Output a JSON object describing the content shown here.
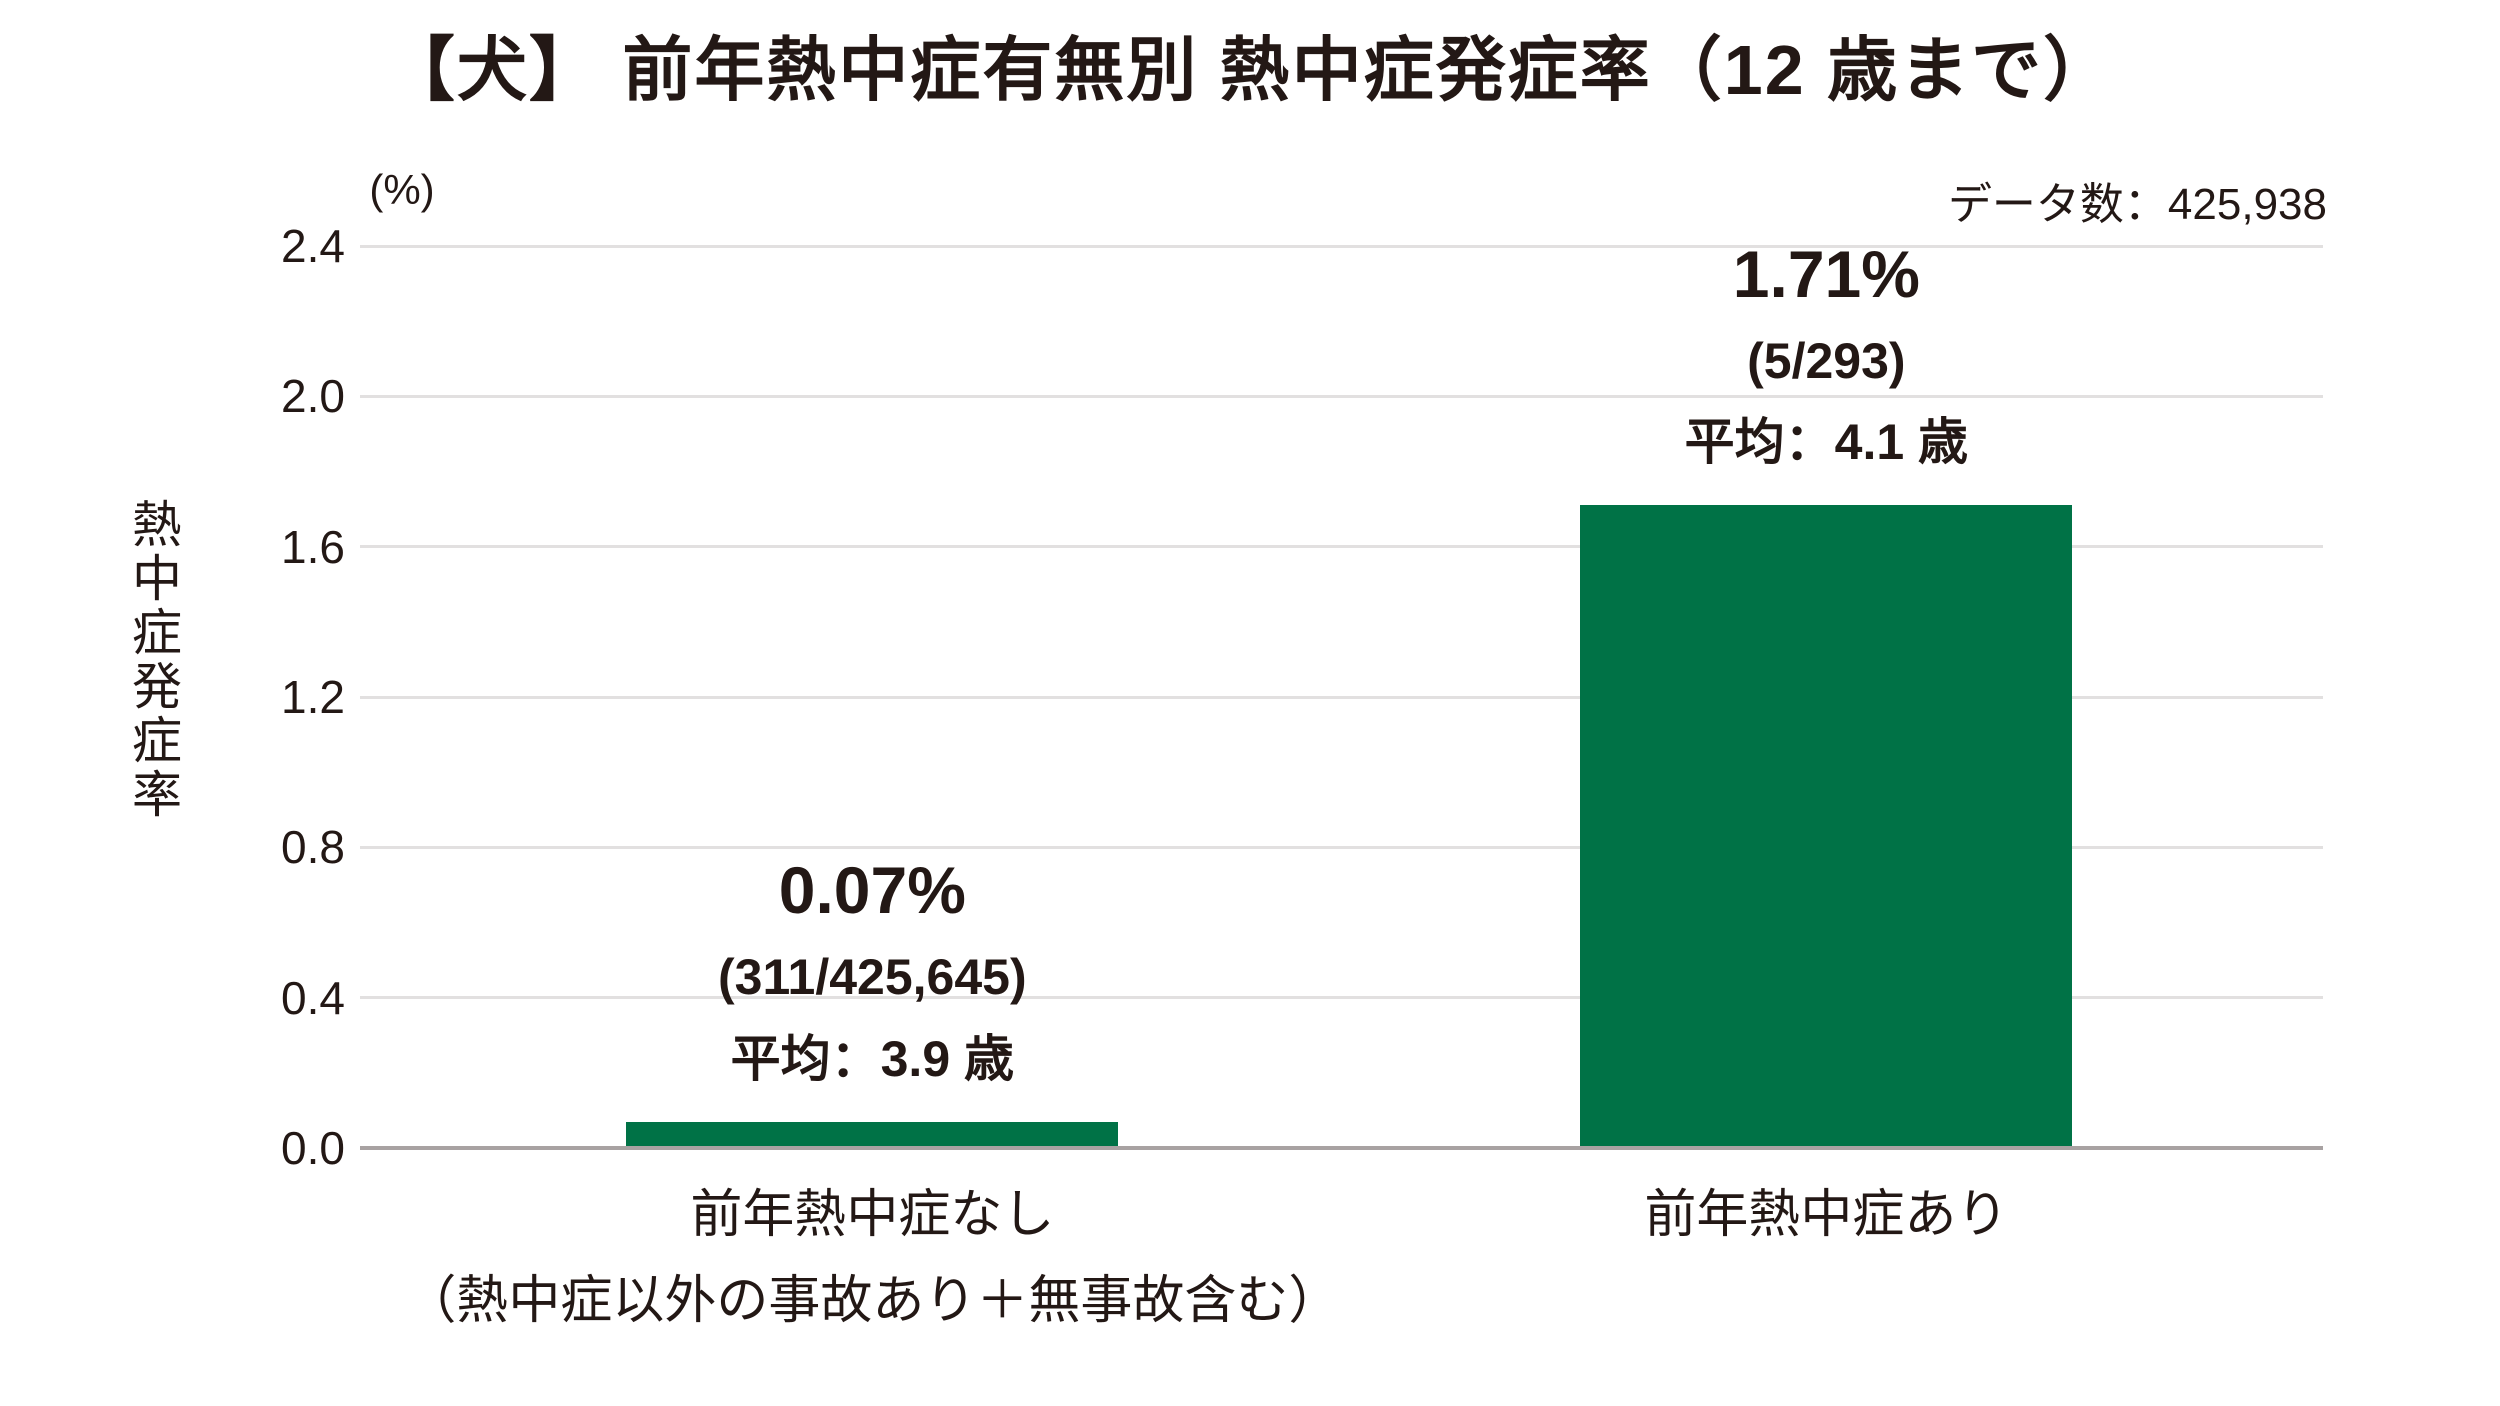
{
  "title": "【犬】 前年熱中症有無別 熱中症発症率（12 歳まで）",
  "data_count_label": "データ数：425,938",
  "colors": {
    "text": "#231815",
    "bar": "#007246",
    "gridline": "#e2e0e0",
    "baseline": "#a8a2a2"
  },
  "chart_data": {
    "type": "bar",
    "title": "【犬】 前年熱中症有無別 熱中症発症率（12 歳まで）",
    "unit_label": "(%)",
    "ylabel": "熱中症発症率",
    "ylim": [
      0,
      2.4
    ],
    "ytick_step": 0.4,
    "yticks": [
      "2.4",
      "2.0",
      "1.6",
      "1.2",
      "0.8",
      "0.4",
      "0.0"
    ],
    "grid": true,
    "legend": "none",
    "data_count": 425938,
    "bar_color": "#007246",
    "bars": [
      {
        "category_label": "前年熱中症なし",
        "category_sublabel": "（熱中症以外の事故あり＋無事故含む）",
        "value": 0.07,
        "value_label": "0.07%",
        "fraction_label": "(311/425,645)",
        "mean_label": "平均：3.9 歳"
      },
      {
        "category_label": "前年熱中症あり",
        "category_sublabel": "",
        "value": 1.71,
        "value_label": "1.71%",
        "fraction_label": "(5/293)",
        "mean_label": "平均：4.1 歳"
      }
    ]
  }
}
